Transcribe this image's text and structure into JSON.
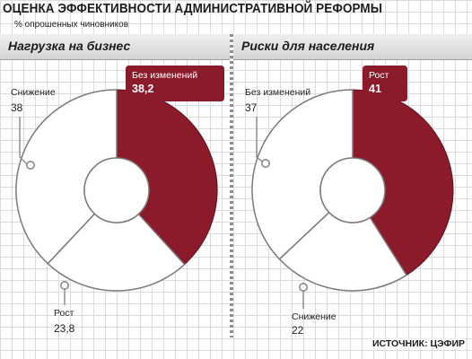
{
  "title": "ОЦЕНКА ЭФФЕКТИВНОСТИ АДМИНИСТРАТИВНОЙ РЕФОРМЫ",
  "subtitle": "% опрошенных чиновников",
  "source": "ИСТОЧНИК: ЦЭФИР",
  "colors": {
    "highlight": "#8b1a2b",
    "highlight_dark": "#5e0f1c",
    "slice_fill": "#ffffff",
    "outline": "#7a7a7a"
  },
  "chart_data": [
    {
      "type": "pie",
      "title": "Нагрузка на бизнес",
      "unit": "% опрошенных чиновников",
      "slices": [
        {
          "label": "Без изменений",
          "value_text": "38,2",
          "value": 38.2,
          "highlight": true
        },
        {
          "label": "Рост",
          "value_text": "23,8",
          "value": 23.8,
          "highlight": false
        },
        {
          "label": "Снижение",
          "value_text": "38",
          "value": 38,
          "highlight": false
        }
      ]
    },
    {
      "type": "pie",
      "title": "Риски для населения",
      "unit": "% опрошенных чиновников",
      "slices": [
        {
          "label": "Рост",
          "value_text": "41",
          "value": 41,
          "highlight": true
        },
        {
          "label": "Снижение",
          "value_text": "22",
          "value": 22,
          "highlight": false
        },
        {
          "label": "Без изменений",
          "value_text": "37",
          "value": 37,
          "highlight": false
        }
      ]
    }
  ]
}
